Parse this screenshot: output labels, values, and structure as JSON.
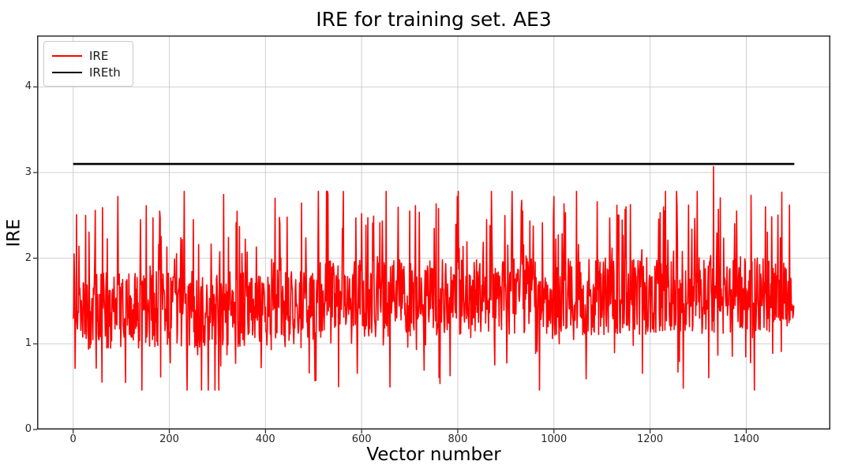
{
  "figure": {
    "title": "IRE for training set. AE3",
    "xlabel": "Vector number",
    "ylabel": "IRE",
    "background_color": "#ffffff",
    "grid_color": "#d0d0d0",
    "spine_color": "#2b2b2b",
    "tick_color": "#262626"
  },
  "legend": {
    "position": "upper left",
    "entries": [
      {
        "label": "IRE",
        "color": "#ff0000"
      },
      {
        "label": "IREth",
        "color": "#000000"
      }
    ]
  },
  "chart_data": {
    "type": "line",
    "title": "IRE for training set. AE3",
    "xlabel": "Vector number",
    "ylabel": "IRE",
    "xlim": [
      -75,
      1575
    ],
    "ylim": [
      0,
      4.6
    ],
    "xticks": [
      0,
      200,
      400,
      600,
      800,
      1000,
      1200,
      1400
    ],
    "yticks": [
      0,
      1,
      2,
      3,
      4
    ],
    "grid": true,
    "legend_position": "upper left",
    "series": [
      {
        "name": "IRE",
        "type": "noise_line",
        "color": "#ff0000",
        "linewidth": 1.6,
        "n": 1500,
        "x_start": 0,
        "x_end": 1499,
        "generator": {
          "seed": 7,
          "jitter": 0.9,
          "spike_prob": 0.09,
          "spike_min": 0.3,
          "spike_range": 0.85,
          "dip_prob": 0.07,
          "dip_min": 0.25,
          "dip_range": 0.55,
          "clamp": [
            0.46,
            2.78
          ],
          "base_points": [
            [
              0,
              1.38
            ],
            [
              480,
              1.42
            ],
            [
              520,
              1.53
            ],
            [
              1000,
              1.55
            ],
            [
              1499,
              1.58
            ]
          ]
        },
        "keypoints": [
          [
            2,
            2.05
          ],
          [
            61,
            2.59
          ],
          [
            93,
            2.72
          ],
          [
            180,
            2.55
          ],
          [
            250,
            2.45
          ],
          [
            303,
            0.46
          ],
          [
            420,
            2.7
          ],
          [
            445,
            2.48
          ],
          [
            530,
            2.75
          ],
          [
            600,
            2.52
          ],
          [
            700,
            2.55
          ],
          [
            760,
            2.58
          ],
          [
            860,
            2.45
          ],
          [
            935,
            2.55
          ],
          [
            1000,
            2.72
          ],
          [
            1090,
            2.66
          ],
          [
            1150,
            2.6
          ],
          [
            1230,
            2.55
          ],
          [
            1280,
            2.62
          ],
          [
            1332,
            3.07
          ],
          [
            1380,
            2.55
          ],
          [
            1409,
            0.78
          ],
          [
            1440,
            2.6
          ],
          [
            1490,
            2.62
          ]
        ],
        "observed_stats": {
          "min": 0.46,
          "min_x": 303,
          "max": 3.07,
          "max_x": 1332,
          "typical_band": [
            1.0,
            2.0
          ],
          "mean_approx": 1.5
        }
      },
      {
        "name": "IREth",
        "type": "hline",
        "color": "#000000",
        "linewidth": 2.6,
        "y": 3.1,
        "x_start": 0,
        "x_end": 1500
      }
    ]
  }
}
